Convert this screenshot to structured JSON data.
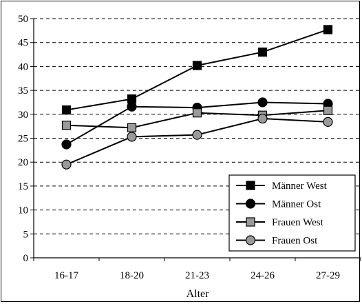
{
  "chart_data": {
    "type": "line",
    "categories": [
      "16-17",
      "18-20",
      "21-23",
      "24-26",
      "27-29"
    ],
    "xlabel": "Alter",
    "ylabel": "",
    "ylim": [
      0,
      50
    ],
    "yticks": [
      "0",
      "5",
      "10",
      "15",
      "20",
      "25",
      "30",
      "35",
      "40",
      "45",
      "50"
    ],
    "grid": true,
    "legend_position": "bottom-right",
    "series": [
      {
        "name": "Männer West",
        "values": [
          30.9,
          33.2,
          40.2,
          43.0,
          47.7
        ],
        "marker": "square",
        "fill": "#000000"
      },
      {
        "name": "Männer Ost",
        "values": [
          23.7,
          31.6,
          31.4,
          32.5,
          32.2
        ],
        "marker": "circle",
        "fill": "#000000"
      },
      {
        "name": "Frauen West",
        "values": [
          27.7,
          27.2,
          30.3,
          29.8,
          30.8
        ],
        "marker": "square",
        "fill": "#9a9a9a"
      },
      {
        "name": "Frauen Ost",
        "values": [
          19.5,
          25.3,
          25.7,
          29.1,
          28.4
        ],
        "marker": "circle",
        "fill": "#9a9a9a"
      }
    ]
  }
}
